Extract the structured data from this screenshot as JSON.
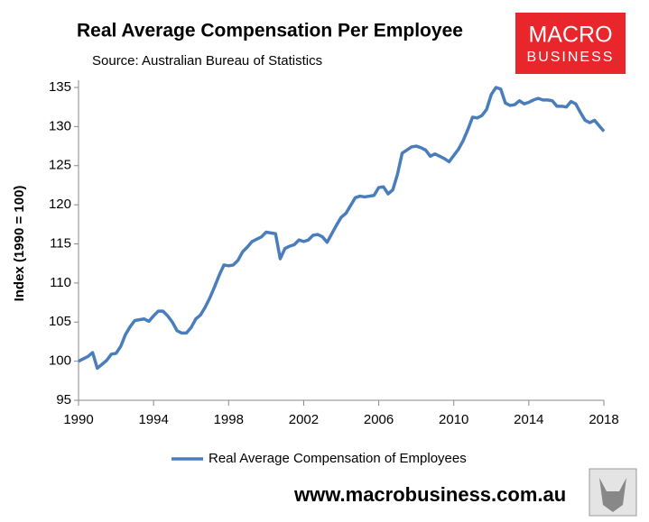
{
  "chart_data": {
    "type": "line",
    "title": "Real Average Compensation Per Employee",
    "subtitle": "Source: Australian Bureau of Statistics",
    "y_label": "Index (1990 = 100)",
    "x": [
      1990,
      1990.25,
      1990.5,
      1990.75,
      1991,
      1991.25,
      1991.5,
      1991.75,
      1992,
      1992.25,
      1992.5,
      1992.75,
      1993,
      1993.25,
      1993.5,
      1993.75,
      1994,
      1994.25,
      1994.5,
      1994.75,
      1995,
      1995.25,
      1995.5,
      1995.75,
      1996,
      1996.25,
      1996.5,
      1996.75,
      1997,
      1997.25,
      1997.5,
      1997.75,
      1998,
      1998.25,
      1998.5,
      1998.75,
      1999,
      1999.25,
      1999.5,
      1999.75,
      2000,
      2000.25,
      2000.5,
      2000.75,
      2001,
      2001.25,
      2001.5,
      2001.75,
      2002,
      2002.25,
      2002.5,
      2002.75,
      2003,
      2003.25,
      2003.5,
      2003.75,
      2004,
      2004.25,
      2004.5,
      2004.75,
      2005,
      2005.25,
      2005.5,
      2005.75,
      2006,
      2006.25,
      2006.5,
      2006.75,
      2007,
      2007.25,
      2007.5,
      2007.75,
      2008,
      2008.25,
      2008.5,
      2008.75,
      2009,
      2009.25,
      2009.5,
      2009.75,
      2010,
      2010.25,
      2010.5,
      2010.75,
      2011,
      2011.25,
      2011.5,
      2011.75,
      2012,
      2012.25,
      2012.5,
      2012.75,
      2013,
      2013.25,
      2013.5,
      2013.75,
      2014,
      2014.25,
      2014.5,
      2014.75,
      2015,
      2015.25,
      2015.5,
      2015.75,
      2016,
      2016.25,
      2016.5,
      2016.75,
      2017,
      2017.25,
      2017.5,
      2017.75,
      2018
    ],
    "series": [
      {
        "name": "Real Average Compensation of Employees",
        "color": "#4a7ebb",
        "values": [
          100.0,
          100.3,
          100.6,
          101.1,
          99.1,
          99.6,
          100.1,
          100.9,
          101.0,
          101.9,
          103.4,
          104.4,
          105.2,
          105.3,
          105.4,
          105.1,
          105.8,
          106.4,
          106.4,
          105.8,
          105.0,
          103.9,
          103.6,
          103.6,
          104.3,
          105.4,
          105.9,
          106.9,
          108.1,
          109.5,
          111.0,
          112.3,
          112.2,
          112.3,
          112.9,
          114.0,
          114.6,
          115.3,
          115.6,
          115.9,
          116.5,
          116.4,
          116.3,
          113.1,
          114.4,
          114.7,
          114.9,
          115.5,
          115.3,
          115.5,
          116.1,
          116.2,
          115.9,
          115.2,
          116.3,
          117.4,
          118.4,
          118.9,
          119.9,
          120.9,
          121.1,
          121.0,
          121.1,
          121.2,
          122.2,
          122.3,
          121.4,
          121.9,
          123.9,
          126.6,
          127.0,
          127.4,
          127.5,
          127.3,
          127.0,
          126.2,
          126.5,
          126.2,
          125.9,
          125.5,
          126.3,
          127.1,
          128.2,
          129.6,
          131.2,
          131.1,
          131.4,
          132.2,
          134.1,
          135.0,
          134.8,
          133.0,
          132.7,
          132.8,
          133.3,
          132.9,
          133.1,
          133.4,
          133.6,
          133.4,
          133.4,
          133.3,
          132.6,
          132.6,
          132.5,
          133.2,
          132.9,
          131.8,
          130.8,
          130.5,
          130.8,
          130.1,
          129.4
        ]
      }
    ],
    "xlim": [
      1990,
      2018
    ],
    "xticks": [
      1990,
      1994,
      1998,
      2002,
      2006,
      2010,
      2014,
      2018
    ],
    "ylim": [
      95,
      135
    ],
    "yticks": [
      95,
      100,
      105,
      110,
      115,
      120,
      125,
      130,
      135
    ],
    "grid": false,
    "legend": "bottom"
  },
  "branding": {
    "logo_top": "MACRO",
    "logo_bottom": "BUSINESS",
    "website": "www.macrobusiness.com.au"
  }
}
